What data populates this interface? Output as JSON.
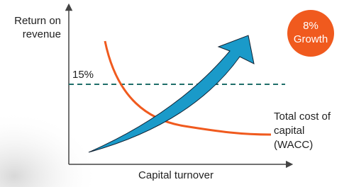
{
  "axes": {
    "y_label": [
      "Return on",
      "revenue"
    ],
    "x_label": "Capital turnover"
  },
  "threshold": {
    "label": "15%"
  },
  "curve": {
    "label": [
      "Total cost of",
      "capital",
      "(WACC)"
    ]
  },
  "badge": {
    "lines": [
      "8%",
      "Growth"
    ]
  }
}
